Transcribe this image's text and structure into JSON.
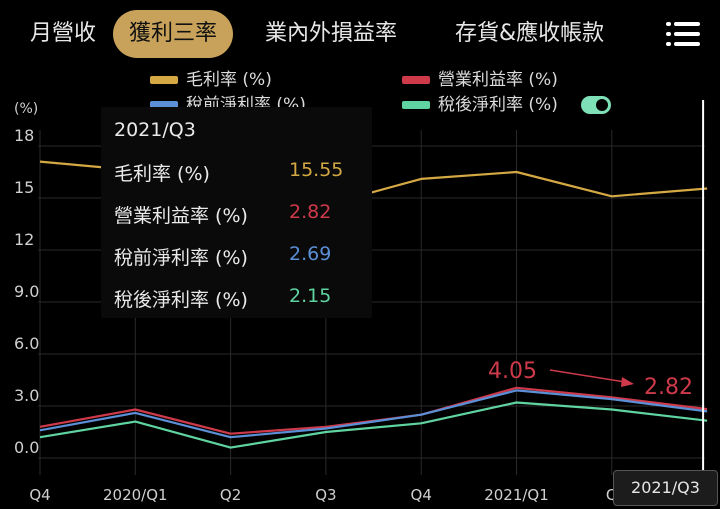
{
  "tabs": [
    {
      "label": "月營收",
      "active": false
    },
    {
      "label": "獲利三率",
      "active": true
    },
    {
      "label": "業內外損益率",
      "active": false
    },
    {
      "label": "存貨&應收帳款",
      "active": false
    }
  ],
  "menu_icon": "hamburger-menu-icon",
  "legend": [
    {
      "label": "毛利率 (%)",
      "color": "#d4a843"
    },
    {
      "label": "營業利益率 (%)",
      "color": "#cf3a4b"
    },
    {
      "label": "稅前淨利率 (%)",
      "color": "#5b8fd6"
    },
    {
      "label": "稅後淨利率 (%)",
      "color": "#5fd3a0"
    }
  ],
  "toggle_on": true,
  "tooltip": {
    "title": "2021/Q3",
    "rows": [
      {
        "label": "毛利率 (%)",
        "value": "15.55",
        "color": "#d4a843"
      },
      {
        "label": "營業利益率 (%)",
        "value": "2.82",
        "color": "#cf3a4b"
      },
      {
        "label": "稅前淨利率 (%)",
        "value": "2.69",
        "color": "#5b8fd6"
      },
      {
        "label": "稅後淨利率 (%)",
        "value": "2.15",
        "color": "#5fd3a0"
      }
    ]
  },
  "annotation": {
    "from_value": "4.05",
    "to_value": "2.82",
    "color": "#cf3a4b"
  },
  "cursor_label": "2021/Q3",
  "chart_data": {
    "type": "line",
    "ylabel": "(%)",
    "ylim": [
      -1,
      19
    ],
    "yticks": [
      "18",
      "15",
      "12",
      "9.0",
      "6.0",
      "3.0",
      "0.0"
    ],
    "ytick_values": [
      18,
      15,
      12,
      9,
      6,
      3,
      0
    ],
    "categories": [
      "Q4",
      "2020/Q1",
      "Q2",
      "Q3",
      "Q4",
      "2021/Q1",
      "Q2",
      "2021/Q3"
    ],
    "x_tick_labels": [
      "Q4",
      "2020/Q1",
      "Q2",
      "Q3",
      "Q4",
      "2021/Q1",
      "Q"
    ],
    "grid": true,
    "legend_position": "top",
    "series": [
      {
        "name": "毛利率 (%)",
        "color": "#d4a843",
        "values": [
          17.1,
          16.6,
          15.3,
          14.6,
          16.1,
          16.5,
          15.1,
          15.55
        ]
      },
      {
        "name": "營業利益率 (%)",
        "color": "#cf3a4b",
        "values": [
          1.8,
          2.8,
          1.4,
          1.8,
          2.5,
          4.05,
          3.5,
          2.82
        ]
      },
      {
        "name": "稅前淨利率 (%)",
        "color": "#5b8fd6",
        "values": [
          1.6,
          2.6,
          1.2,
          1.7,
          2.5,
          3.9,
          3.4,
          2.69
        ]
      },
      {
        "name": "稅後淨利率 (%)",
        "color": "#5fd3a0",
        "values": [
          1.2,
          2.1,
          0.6,
          1.5,
          2.0,
          3.2,
          2.8,
          2.15
        ]
      }
    ]
  }
}
